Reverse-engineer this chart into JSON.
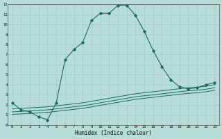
{
  "xlabel": "Humidex (Indice chaleur)",
  "bg_color": "#b8ddd8",
  "line_color": "#1a6b5a",
  "grid_color": "#9eccc5",
  "xlim": [
    -0.5,
    23.5
  ],
  "ylim": [
    0,
    12
  ],
  "curve1_x": [
    0,
    1,
    2,
    3,
    4,
    5,
    6,
    7,
    8,
    9,
    10,
    11,
    12,
    13,
    14,
    15,
    16,
    17,
    18,
    19,
    20,
    21,
    22,
    23
  ],
  "curve1_y": [
    2.2,
    1.5,
    1.3,
    0.8,
    0.5,
    2.2,
    6.5,
    7.5,
    8.2,
    10.4,
    11.1,
    11.1,
    11.9,
    11.9,
    10.9,
    9.3,
    7.4,
    5.8,
    4.5,
    3.8,
    3.6,
    3.7,
    4.0,
    4.2
  ],
  "line2_x": [
    0,
    1,
    2,
    3,
    4,
    5,
    6,
    7,
    8,
    9,
    10,
    11,
    12,
    13,
    14,
    15,
    16,
    17,
    18,
    19,
    20,
    21,
    22,
    23
  ],
  "line2_y": [
    1.6,
    1.65,
    1.7,
    1.75,
    1.8,
    1.9,
    2.0,
    2.1,
    2.2,
    2.35,
    2.5,
    2.65,
    2.8,
    2.95,
    3.1,
    3.2,
    3.3,
    3.4,
    3.5,
    3.6,
    3.7,
    3.75,
    3.85,
    4.0
  ],
  "line3_x": [
    0,
    1,
    2,
    3,
    4,
    5,
    6,
    7,
    8,
    9,
    10,
    11,
    12,
    13,
    14,
    15,
    16,
    17,
    18,
    19,
    20,
    21,
    22,
    23
  ],
  "line3_y": [
    1.3,
    1.35,
    1.4,
    1.45,
    1.5,
    1.6,
    1.7,
    1.8,
    1.9,
    2.05,
    2.2,
    2.35,
    2.5,
    2.65,
    2.8,
    2.9,
    3.0,
    3.1,
    3.2,
    3.3,
    3.4,
    3.45,
    3.55,
    3.7
  ],
  "line4_x": [
    0,
    1,
    2,
    3,
    4,
    5,
    6,
    7,
    8,
    9,
    10,
    11,
    12,
    13,
    14,
    15,
    16,
    17,
    18,
    19,
    20,
    21,
    22,
    23
  ],
  "line4_y": [
    1.05,
    1.1,
    1.15,
    1.2,
    1.25,
    1.35,
    1.45,
    1.55,
    1.65,
    1.8,
    1.95,
    2.1,
    2.25,
    2.4,
    2.55,
    2.65,
    2.75,
    2.85,
    2.95,
    3.05,
    3.15,
    3.2,
    3.3,
    3.45
  ]
}
